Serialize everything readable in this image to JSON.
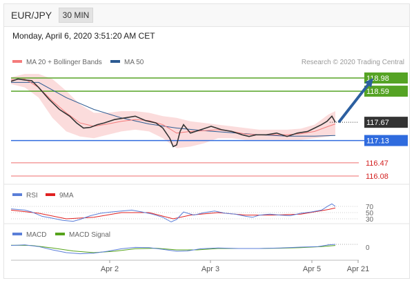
{
  "header": {
    "pair": "EUR/JPY",
    "timeframe": "30 MIN",
    "timestamp": "Monday, April 6, 2020 3:51:20 AM CET"
  },
  "credit": "Research © 2020 Trading Central",
  "colors": {
    "ma20": "#f47b7b",
    "ma50": "#2c5a92",
    "band_fill": "#fbdcdc",
    "green": "#55a324",
    "blue": "#2f6bde",
    "red": "#ef6b6b",
    "rsi": "#5a7ed8",
    "rsi_ma": "#e02020",
    "macd": "#5a7ed8",
    "macd_signal": "#56a31c"
  },
  "chart_data": [
    {
      "type": "line",
      "legend": [
        {
          "name": "MA 20 + Bollinger Bands",
          "color": "#f47b7b"
        },
        {
          "name": "MA 50",
          "color": "#2c5a92"
        }
      ],
      "x_ticks": [
        "Apr 2",
        "Apr 3",
        "Apr 5",
        "Apr 21"
      ],
      "close_points": [
        [
          0,
          118.88
        ],
        [
          10,
          118.95
        ],
        [
          20,
          118.92
        ],
        [
          30,
          118.9
        ],
        [
          40,
          118.7
        ],
        [
          55,
          118.35
        ],
        [
          70,
          118.05
        ],
        [
          85,
          117.85
        ],
        [
          95,
          117.65
        ],
        [
          105,
          117.5
        ],
        [
          115,
          117.52
        ],
        [
          125,
          117.6
        ],
        [
          135,
          117.65
        ],
        [
          150,
          117.75
        ],
        [
          165,
          117.8
        ],
        [
          180,
          117.85
        ],
        [
          195,
          117.72
        ],
        [
          210,
          117.65
        ],
        [
          220,
          117.5
        ],
        [
          230,
          117.2
        ],
        [
          235,
          116.95
        ],
        [
          240,
          117.0
        ],
        [
          245,
          117.4
        ],
        [
          250,
          117.6
        ],
        [
          260,
          117.35
        ],
        [
          275,
          117.45
        ],
        [
          290,
          117.55
        ],
        [
          305,
          117.45
        ],
        [
          320,
          117.4
        ],
        [
          335,
          117.3
        ],
        [
          345,
          117.25
        ],
        [
          355,
          117.3
        ],
        [
          370,
          117.3
        ],
        [
          385,
          117.35
        ],
        [
          400,
          117.25
        ],
        [
          415,
          117.35
        ],
        [
          430,
          117.4
        ],
        [
          440,
          117.5
        ],
        [
          450,
          117.6
        ],
        [
          458,
          117.7
        ],
        [
          465,
          117.85
        ],
        [
          470,
          117.67
        ]
      ],
      "ma20_points": [
        [
          0,
          118.92
        ],
        [
          20,
          118.95
        ],
        [
          40,
          118.7
        ],
        [
          60,
          118.3
        ],
        [
          80,
          117.95
        ],
        [
          100,
          117.65
        ],
        [
          120,
          117.55
        ],
        [
          140,
          117.62
        ],
        [
          160,
          117.7
        ],
        [
          180,
          117.75
        ],
        [
          200,
          117.72
        ],
        [
          220,
          117.6
        ],
        [
          240,
          117.35
        ],
        [
          260,
          117.4
        ],
        [
          280,
          117.42
        ],
        [
          300,
          117.45
        ],
        [
          320,
          117.4
        ],
        [
          340,
          117.32
        ],
        [
          360,
          117.3
        ],
        [
          380,
          117.3
        ],
        [
          400,
          117.3
        ],
        [
          420,
          117.33
        ],
        [
          440,
          117.4
        ],
        [
          460,
          117.55
        ],
        [
          470,
          117.62
        ]
      ],
      "ma50_points": [
        [
          0,
          118.85
        ],
        [
          40,
          118.85
        ],
        [
          80,
          118.4
        ],
        [
          120,
          118.05
        ],
        [
          160,
          117.8
        ],
        [
          200,
          117.62
        ],
        [
          240,
          117.5
        ],
        [
          280,
          117.42
        ],
        [
          320,
          117.36
        ],
        [
          360,
          117.3
        ],
        [
          400,
          117.26
        ],
        [
          440,
          117.26
        ],
        [
          470,
          117.28
        ]
      ],
      "bb_upper": [
        [
          0,
          119.0
        ],
        [
          20,
          119.1
        ],
        [
          40,
          119.1
        ],
        [
          60,
          118.95
        ],
        [
          80,
          118.6
        ],
        [
          100,
          118.2
        ],
        [
          120,
          117.95
        ],
        [
          140,
          117.95
        ],
        [
          160,
          118.0
        ],
        [
          180,
          118.0
        ],
        [
          200,
          117.95
        ],
        [
          220,
          117.85
        ],
        [
          240,
          117.8
        ],
        [
          260,
          117.7
        ],
        [
          280,
          117.65
        ],
        [
          300,
          117.6
        ],
        [
          320,
          117.55
        ],
        [
          340,
          117.5
        ],
        [
          360,
          117.45
        ],
        [
          380,
          117.45
        ],
        [
          400,
          117.45
        ],
        [
          420,
          117.48
        ],
        [
          440,
          117.6
        ],
        [
          460,
          117.9
        ],
        [
          470,
          118.0
        ]
      ],
      "bb_lower": [
        [
          0,
          118.8
        ],
        [
          20,
          118.7
        ],
        [
          40,
          118.4
        ],
        [
          60,
          117.8
        ],
        [
          80,
          117.4
        ],
        [
          100,
          117.25
        ],
        [
          120,
          117.2
        ],
        [
          140,
          117.3
        ],
        [
          160,
          117.4
        ],
        [
          180,
          117.45
        ],
        [
          200,
          117.4
        ],
        [
          220,
          117.2
        ],
        [
          240,
          116.9
        ],
        [
          260,
          116.95
        ],
        [
          280,
          117.05
        ],
        [
          300,
          117.2
        ],
        [
          320,
          117.2
        ],
        [
          340,
          117.15
        ],
        [
          360,
          117.15
        ],
        [
          380,
          117.15
        ],
        [
          400,
          117.15
        ],
        [
          420,
          117.15
        ],
        [
          440,
          117.2
        ],
        [
          460,
          117.25
        ],
        [
          470,
          117.3
        ]
      ],
      "levels": [
        {
          "label": "118.98",
          "value": 118.98,
          "style": "green"
        },
        {
          "label": "118.59",
          "value": 118.59,
          "style": "green"
        },
        {
          "label": "117.67",
          "value": 117.67,
          "style": "current"
        },
        {
          "label": "117.13",
          "value": 117.13,
          "style": "blue"
        },
        {
          "label": "116.47",
          "value": 116.47,
          "style": "red"
        },
        {
          "label": "116.08",
          "value": 116.08,
          "style": "red"
        }
      ],
      "forecast_arrow": {
        "from": [
          475,
          117.67
        ],
        "to": [
          525,
          118.98
        ]
      }
    },
    {
      "type": "line",
      "legend": [
        {
          "name": "RSI",
          "color": "#5a7ed8"
        },
        {
          "name": "9MA",
          "color": "#e02020"
        }
      ],
      "y_ticks": [
        {
          "label": "70",
          "value": 70
        },
        {
          "label": "50",
          "value": 50
        },
        {
          "label": "30",
          "value": 30
        }
      ],
      "rsi_points": [
        [
          0,
          62
        ],
        [
          10,
          60
        ],
        [
          20,
          58
        ],
        [
          30,
          52
        ],
        [
          45,
          38
        ],
        [
          60,
          32
        ],
        [
          75,
          25
        ],
        [
          90,
          22
        ],
        [
          100,
          28
        ],
        [
          115,
          40
        ],
        [
          130,
          48
        ],
        [
          145,
          52
        ],
        [
          160,
          55
        ],
        [
          175,
          58
        ],
        [
          190,
          52
        ],
        [
          205,
          45
        ],
        [
          220,
          35
        ],
        [
          232,
          20
        ],
        [
          240,
          28
        ],
        [
          250,
          52
        ],
        [
          265,
          42
        ],
        [
          280,
          50
        ],
        [
          295,
          55
        ],
        [
          310,
          48
        ],
        [
          325,
          45
        ],
        [
          340,
          38
        ],
        [
          350,
          35
        ],
        [
          360,
          42
        ],
        [
          375,
          45
        ],
        [
          390,
          42
        ],
        [
          405,
          40
        ],
        [
          420,
          48
        ],
        [
          435,
          52
        ],
        [
          450,
          58
        ],
        [
          460,
          72
        ],
        [
          465,
          78
        ],
        [
          470,
          70
        ]
      ],
      "ma9_points": [
        [
          0,
          58
        ],
        [
          40,
          48
        ],
        [
          80,
          30
        ],
        [
          120,
          35
        ],
        [
          160,
          50
        ],
        [
          200,
          50
        ],
        [
          235,
          30
        ],
        [
          260,
          42
        ],
        [
          300,
          50
        ],
        [
          340,
          42
        ],
        [
          380,
          42
        ],
        [
          420,
          45
        ],
        [
          460,
          60
        ],
        [
          470,
          65
        ]
      ]
    },
    {
      "type": "line",
      "legend": [
        {
          "name": "MACD",
          "color": "#5a7ed8"
        },
        {
          "name": "MACD Signal",
          "color": "#56a31c"
        }
      ],
      "y_ticks": [
        {
          "label": "0",
          "value": 0
        }
      ],
      "macd_points": [
        [
          0,
          0.06
        ],
        [
          20,
          0.08
        ],
        [
          40,
          0.02
        ],
        [
          60,
          -0.1
        ],
        [
          80,
          -0.2
        ],
        [
          100,
          -0.24
        ],
        [
          120,
          -0.22
        ],
        [
          140,
          -0.15
        ],
        [
          160,
          -0.06
        ],
        [
          180,
          -0.01
        ],
        [
          200,
          -0.02
        ],
        [
          220,
          -0.08
        ],
        [
          240,
          -0.15
        ],
        [
          255,
          -0.14
        ],
        [
          275,
          -0.06
        ],
        [
          300,
          -0.03
        ],
        [
          330,
          -0.05
        ],
        [
          360,
          -0.05
        ],
        [
          390,
          -0.03
        ],
        [
          420,
          0.0
        ],
        [
          445,
          0.02
        ],
        [
          460,
          0.08
        ],
        [
          470,
          0.1
        ]
      ],
      "signal_points": [
        [
          0,
          0.07
        ],
        [
          30,
          0.06
        ],
        [
          60,
          -0.03
        ],
        [
          90,
          -0.14
        ],
        [
          120,
          -0.2
        ],
        [
          150,
          -0.15
        ],
        [
          180,
          -0.06
        ],
        [
          210,
          -0.04
        ],
        [
          240,
          -0.1
        ],
        [
          270,
          -0.1
        ],
        [
          300,
          -0.05
        ],
        [
          330,
          -0.05
        ],
        [
          360,
          -0.05
        ],
        [
          390,
          -0.04
        ],
        [
          420,
          -0.02
        ],
        [
          450,
          0.02
        ],
        [
          470,
          0.06
        ]
      ]
    }
  ]
}
